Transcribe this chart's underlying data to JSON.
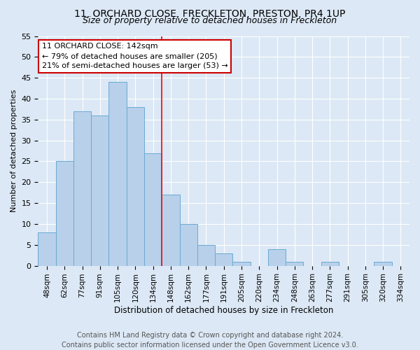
{
  "title": "11, ORCHARD CLOSE, FRECKLETON, PRESTON, PR4 1UP",
  "subtitle": "Size of property relative to detached houses in Freckleton",
  "xlabel": "Distribution of detached houses by size in Freckleton",
  "ylabel": "Number of detached properties",
  "bar_labels": [
    "48sqm",
    "62sqm",
    "77sqm",
    "91sqm",
    "105sqm",
    "120sqm",
    "134sqm",
    "148sqm",
    "162sqm",
    "177sqm",
    "191sqm",
    "205sqm",
    "220sqm",
    "234sqm",
    "248sqm",
    "263sqm",
    "277sqm",
    "291sqm",
    "305sqm",
    "320sqm",
    "334sqm"
  ],
  "bar_values": [
    8,
    25,
    37,
    36,
    44,
    38,
    27,
    17,
    10,
    5,
    3,
    1,
    0,
    4,
    1,
    0,
    1,
    0,
    0,
    1,
    0
  ],
  "bar_color": "#b8d0ea",
  "bar_edge_color": "#6aaad4",
  "ylim": [
    0,
    55
  ],
  "yticks": [
    0,
    5,
    10,
    15,
    20,
    25,
    30,
    35,
    40,
    45,
    50,
    55
  ],
  "red_line_index": 6.5,
  "annotation_title": "11 ORCHARD CLOSE: 142sqm",
  "annotation_line1": "← 79% of detached houses are smaller (205)",
  "annotation_line2": "21% of semi-detached houses are larger (53) →",
  "annotation_box_color": "#ffffff",
  "annotation_box_edge": "#cc0000",
  "footer1": "Contains HM Land Registry data © Crown copyright and database right 2024.",
  "footer2": "Contains public sector information licensed under the Open Government Licence v3.0.",
  "bg_color": "#dce8f5",
  "plot_bg_color": "#dce8f5",
  "title_fontsize": 10,
  "subtitle_fontsize": 9,
  "footer_fontsize": 7,
  "ylabel_fontsize": 8,
  "xlabel_fontsize": 8.5,
  "ytick_fontsize": 8,
  "xtick_fontsize": 7.5,
  "annotation_fontsize": 8
}
